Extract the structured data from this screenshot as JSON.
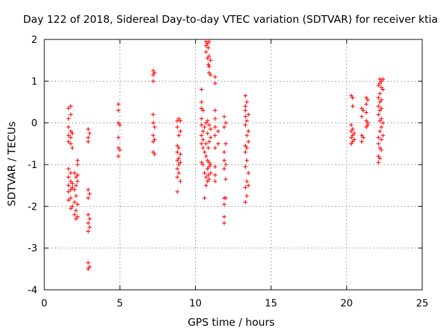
{
  "chart_data": {
    "type": "scatter",
    "title": "Day 122 of 2018, Sidereal Day-to-day VTEC variation (SDTVAR) for receiver ktia",
    "xlabel": "GPS time / hours",
    "ylabel": "SDTVAR / TECUs",
    "xlim": [
      0,
      25
    ],
    "ylim": [
      -4,
      2
    ],
    "xticks": [
      "0",
      "5",
      "10",
      "15",
      "20",
      "25"
    ],
    "yticks": [
      "-4",
      "-3",
      "-2",
      "-1",
      "0",
      "1",
      "2"
    ],
    "grid": true,
    "marker": "+",
    "series": [
      {
        "name": "SDTVAR",
        "color": "#ff0000",
        "points": [
          [
            1.6,
            0.35
          ],
          [
            1.6,
            0.1
          ],
          [
            1.6,
            -0.1
          ],
          [
            1.6,
            -0.3
          ],
          [
            1.6,
            -0.45
          ],
          [
            1.6,
            -1.1
          ],
          [
            1.6,
            -1.3
          ],
          [
            1.6,
            -1.5
          ],
          [
            1.6,
            -1.65
          ],
          [
            1.6,
            -1.85
          ],
          [
            1.75,
            0.4
          ],
          [
            1.75,
            0.2
          ],
          [
            1.75,
            -0.2
          ],
          [
            1.75,
            -0.35
          ],
          [
            1.75,
            -0.5
          ],
          [
            1.75,
            -1.2
          ],
          [
            1.75,
            -1.4
          ],
          [
            1.75,
            -1.6
          ],
          [
            1.75,
            -1.8
          ],
          [
            1.75,
            -2.05
          ],
          [
            1.85,
            -0.25
          ],
          [
            1.85,
            -0.6
          ],
          [
            1.85,
            -1.45
          ],
          [
            1.85,
            -1.55
          ],
          [
            1.85,
            -2.0
          ],
          [
            2.0,
            -1.2
          ],
          [
            2.0,
            -1.6
          ],
          [
            2.0,
            -1.9
          ],
          [
            2.0,
            -2.2
          ],
          [
            2.1,
            -1.3
          ],
          [
            2.1,
            -1.5
          ],
          [
            2.1,
            -1.75
          ],
          [
            2.1,
            -2.1
          ],
          [
            2.1,
            -2.3
          ],
          [
            2.2,
            -0.9
          ],
          [
            2.2,
            -1.0
          ],
          [
            2.2,
            -1.25
          ],
          [
            2.2,
            -1.4
          ],
          [
            2.2,
            -1.95
          ],
          [
            2.2,
            -2.25
          ],
          [
            2.9,
            -0.15
          ],
          [
            2.9,
            -0.35
          ],
          [
            2.9,
            -0.45
          ],
          [
            2.9,
            -1.6
          ],
          [
            2.9,
            -1.8
          ],
          [
            2.9,
            -2.2
          ],
          [
            2.9,
            -2.4
          ],
          [
            2.9,
            -2.6
          ],
          [
            2.9,
            -3.35
          ],
          [
            2.9,
            -3.5
          ],
          [
            3.0,
            -0.25
          ],
          [
            3.0,
            -1.7
          ],
          [
            3.0,
            -2.3
          ],
          [
            3.0,
            -2.5
          ],
          [
            3.0,
            -3.45
          ],
          [
            4.9,
            0.45
          ],
          [
            4.9,
            0.3
          ],
          [
            4.9,
            0.0
          ],
          [
            4.9,
            -0.35
          ],
          [
            4.9,
            -0.6
          ],
          [
            4.9,
            -0.8
          ],
          [
            5.0,
            -0.05
          ],
          [
            5.0,
            -0.65
          ],
          [
            7.2,
            1.25
          ],
          [
            7.2,
            1.15
          ],
          [
            7.2,
            1.0
          ],
          [
            7.2,
            0.2
          ],
          [
            7.2,
            0.0
          ],
          [
            7.2,
            -0.3
          ],
          [
            7.2,
            -0.45
          ],
          [
            7.2,
            -0.7
          ],
          [
            7.3,
            1.2
          ],
          [
            7.3,
            -0.1
          ],
          [
            7.3,
            -0.4
          ],
          [
            7.3,
            -0.75
          ],
          [
            8.8,
            0.05
          ],
          [
            8.8,
            -0.1
          ],
          [
            8.8,
            -0.55
          ],
          [
            8.8,
            -0.7
          ],
          [
            8.8,
            -0.9
          ],
          [
            8.8,
            -1.1
          ],
          [
            8.8,
            -1.3
          ],
          [
            8.8,
            -1.65
          ],
          [
            8.9,
            0.1
          ],
          [
            8.9,
            -0.3
          ],
          [
            8.9,
            -0.6
          ],
          [
            8.9,
            -0.85
          ],
          [
            8.9,
            -1.0
          ],
          [
            8.9,
            -1.2
          ],
          [
            9.0,
            0.05
          ],
          [
            9.0,
            -0.2
          ],
          [
            9.0,
            -0.75
          ],
          [
            9.0,
            -0.95
          ],
          [
            9.0,
            -1.4
          ],
          [
            10.4,
            0.8
          ],
          [
            10.4,
            0.5
          ],
          [
            10.4,
            0.35
          ],
          [
            10.4,
            0.1
          ],
          [
            10.4,
            -0.05
          ],
          [
            10.4,
            -0.3
          ],
          [
            10.4,
            -0.5
          ],
          [
            10.4,
            -0.95
          ],
          [
            10.5,
            0.3
          ],
          [
            10.5,
            -0.2
          ],
          [
            10.5,
            -0.4
          ],
          [
            10.5,
            -0.6
          ],
          [
            10.5,
            -1.0
          ],
          [
            10.6,
            -0.1
          ],
          [
            10.6,
            -0.7
          ],
          [
            10.6,
            -1.2
          ],
          [
            10.6,
            -1.8
          ],
          [
            10.7,
            1.95
          ],
          [
            10.7,
            1.85
          ],
          [
            10.7,
            1.7
          ],
          [
            10.7,
            0.0
          ],
          [
            10.7,
            -0.5
          ],
          [
            10.7,
            -0.8
          ],
          [
            10.7,
            -1.3
          ],
          [
            10.7,
            -1.5
          ],
          [
            10.8,
            1.9
          ],
          [
            10.8,
            1.55
          ],
          [
            10.8,
            0.05
          ],
          [
            10.8,
            -0.25
          ],
          [
            10.8,
            -0.9
          ],
          [
            10.8,
            -1.1
          ],
          [
            10.8,
            -1.4
          ],
          [
            10.85,
            1.8
          ],
          [
            10.85,
            1.4
          ],
          [
            10.85,
            -0.6
          ],
          [
            10.85,
            -1.25
          ],
          [
            10.9,
            1.95
          ],
          [
            10.9,
            1.6
          ],
          [
            10.9,
            1.35
          ],
          [
            10.9,
            1.2
          ],
          [
            10.9,
            -0.05
          ],
          [
            10.9,
            -0.45
          ],
          [
            10.9,
            -0.95
          ],
          [
            10.9,
            -1.05
          ],
          [
            10.9,
            -1.35
          ],
          [
            11.0,
            1.5
          ],
          [
            11.0,
            1.15
          ],
          [
            11.0,
            -0.15
          ],
          [
            11.0,
            -0.35
          ],
          [
            11.0,
            -1.0
          ],
          [
            11.0,
            -1.2
          ],
          [
            11.3,
            1.1
          ],
          [
            11.3,
            0.95
          ],
          [
            11.3,
            0.3
          ],
          [
            11.3,
            0.1
          ],
          [
            11.3,
            -0.1
          ],
          [
            11.3,
            -0.3
          ],
          [
            11.3,
            -0.6
          ],
          [
            11.3,
            -1.05
          ],
          [
            11.3,
            -1.25
          ],
          [
            11.3,
            -1.4
          ],
          [
            11.5,
            -0.2
          ],
          [
            11.5,
            -0.5
          ],
          [
            11.9,
            0.15
          ],
          [
            11.9,
            -0.1
          ],
          [
            11.9,
            -0.7
          ],
          [
            11.9,
            -0.9
          ],
          [
            11.9,
            -1.1
          ],
          [
            11.9,
            -1.8
          ],
          [
            11.9,
            -1.95
          ],
          [
            11.9,
            -2.25
          ],
          [
            11.9,
            -2.4
          ],
          [
            12.0,
            0.0
          ],
          [
            12.0,
            -0.5
          ],
          [
            12.0,
            -1.0
          ],
          [
            12.0,
            -1.35
          ],
          [
            12.0,
            -1.8
          ],
          [
            13.3,
            0.65
          ],
          [
            13.3,
            0.4
          ],
          [
            13.3,
            0.3
          ],
          [
            13.3,
            0.15
          ],
          [
            13.3,
            -0.05
          ],
          [
            13.3,
            -0.55
          ],
          [
            13.3,
            -0.7
          ],
          [
            13.3,
            -1.05
          ],
          [
            13.3,
            -1.55
          ],
          [
            13.3,
            -1.9
          ],
          [
            13.4,
            0.5
          ],
          [
            13.4,
            0.05
          ],
          [
            13.4,
            -0.3
          ],
          [
            13.4,
            -0.6
          ],
          [
            13.4,
            -0.9
          ],
          [
            13.4,
            -1.4
          ],
          [
            13.4,
            -1.75
          ],
          [
            13.5,
            0.2
          ],
          [
            13.5,
            -0.2
          ],
          [
            13.5,
            -0.45
          ],
          [
            13.5,
            -1.2
          ],
          [
            13.5,
            -1.5
          ],
          [
            20.3,
            0.65
          ],
          [
            20.3,
            -0.05
          ],
          [
            20.3,
            -0.2
          ],
          [
            20.3,
            -0.35
          ],
          [
            20.3,
            -0.5
          ],
          [
            20.4,
            0.6
          ],
          [
            20.4,
            0.4
          ],
          [
            20.4,
            -0.15
          ],
          [
            20.4,
            -0.3
          ],
          [
            20.4,
            -0.45
          ],
          [
            20.5,
            -0.25
          ],
          [
            20.5,
            -0.4
          ],
          [
            21.0,
            0.35
          ],
          [
            21.0,
            0.15
          ],
          [
            21.0,
            -0.3
          ],
          [
            21.0,
            -0.45
          ],
          [
            21.1,
            0.3
          ],
          [
            21.1,
            -0.35
          ],
          [
            21.3,
            0.6
          ],
          [
            21.3,
            0.45
          ],
          [
            21.3,
            0.25
          ],
          [
            21.3,
            0.05
          ],
          [
            21.3,
            -0.1
          ],
          [
            21.4,
            0.55
          ],
          [
            21.4,
            0.0
          ],
          [
            21.4,
            -0.05
          ],
          [
            22.1,
            0.9
          ],
          [
            22.1,
            0.6
          ],
          [
            22.1,
            0.4
          ],
          [
            22.1,
            0.2
          ],
          [
            22.1,
            -0.35
          ],
          [
            22.1,
            -0.5
          ],
          [
            22.1,
            -0.8
          ],
          [
            22.1,
            -0.95
          ],
          [
            22.2,
            1.05
          ],
          [
            22.2,
            0.95
          ],
          [
            22.2,
            0.7
          ],
          [
            22.2,
            0.5
          ],
          [
            22.2,
            0.3
          ],
          [
            22.2,
            0.05
          ],
          [
            22.2,
            -0.2
          ],
          [
            22.2,
            -0.6
          ],
          [
            22.2,
            -0.85
          ],
          [
            22.3,
            1.0
          ],
          [
            22.3,
            0.85
          ],
          [
            22.3,
            0.55
          ],
          [
            22.3,
            0.35
          ],
          [
            22.3,
            0.1
          ],
          [
            22.3,
            -0.1
          ],
          [
            22.3,
            -0.4
          ],
          [
            22.3,
            -0.65
          ],
          [
            22.4,
            1.05
          ],
          [
            22.4,
            0.8
          ],
          [
            22.4,
            0.0
          ],
          [
            22.4,
            -0.3
          ]
        ]
      }
    ]
  }
}
